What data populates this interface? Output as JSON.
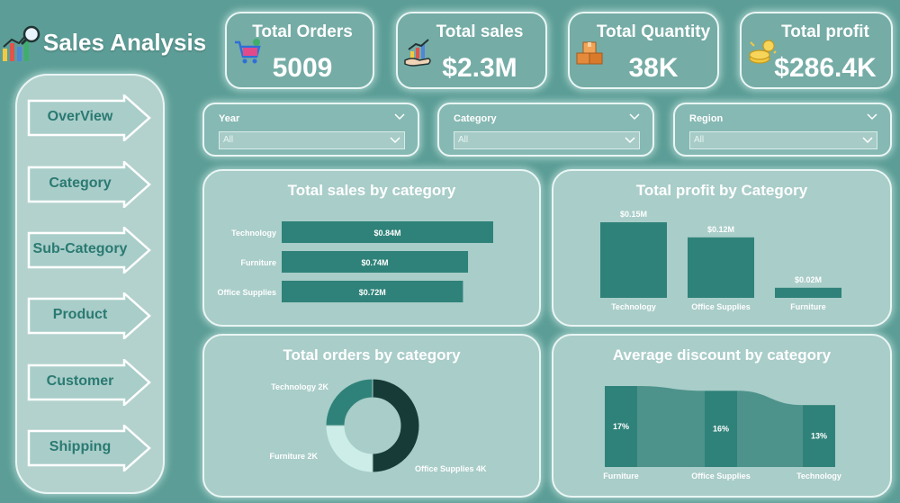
{
  "header": {
    "title": "Sales Analysis",
    "icon": "bar-chart-magnifier-icon"
  },
  "kpis": {
    "orders": {
      "label": "Total Orders",
      "value": "5009",
      "icon": "shopping-cart-icon"
    },
    "sales": {
      "label": "Total sales",
      "value": "$2.3M",
      "icon": "hand-growth-chart-icon"
    },
    "quantity": {
      "label": "Total Quantity",
      "value": "38K",
      "icon": "boxes-icon"
    },
    "profit": {
      "label": "Total profit",
      "value": "$286.4K",
      "icon": "money-coins-icon"
    }
  },
  "nav": {
    "items": [
      {
        "label": "OverView"
      },
      {
        "label": "Category"
      },
      {
        "label": "Sub-Category"
      },
      {
        "label": "Product"
      },
      {
        "label": "Customer"
      },
      {
        "label": "Shipping"
      }
    ]
  },
  "slicers": {
    "year": {
      "title": "Year",
      "value": "All"
    },
    "category": {
      "title": "Category",
      "value": "All"
    },
    "region": {
      "title": "Region",
      "value": "All"
    }
  },
  "colors": {
    "background": "#5c9e97",
    "panel": "#a9cdc9",
    "bar": "#2f8279",
    "nav_text": "#2a7a72",
    "donut_dark": "#173b36",
    "donut_light": "#cdeee8"
  },
  "chart_data": [
    {
      "type": "bar",
      "orientation": "horizontal",
      "title": "Total sales by category",
      "categories": [
        "Technology",
        "Furniture",
        "Office Supplies"
      ],
      "values": [
        0.84,
        0.74,
        0.72
      ],
      "labels": [
        "$0.84M",
        "$0.74M",
        "$0.72M"
      ]
    },
    {
      "type": "bar",
      "title": "Total profit by Category",
      "categories": [
        "Technology",
        "Office Supplies",
        "Furniture"
      ],
      "values": [
        0.15,
        0.12,
        0.02
      ],
      "labels": [
        "$0.15M",
        "$0.12M",
        "$0.02M"
      ]
    },
    {
      "type": "pie",
      "variant": "donut",
      "title": "Total orders by category",
      "categories": [
        "Office Supplies",
        "Furniture",
        "Technology"
      ],
      "values": [
        4,
        2,
        2
      ],
      "labels": [
        "Office Supplies 4K",
        "Furniture 2K",
        "Technology 2K"
      ]
    },
    {
      "type": "bar",
      "variant": "ribbon",
      "title": "Average discount by category",
      "categories": [
        "Furniture",
        "Office Supplies",
        "Technology"
      ],
      "values": [
        17,
        16,
        13
      ],
      "labels": [
        "17%",
        "16%",
        "13%"
      ]
    }
  ]
}
